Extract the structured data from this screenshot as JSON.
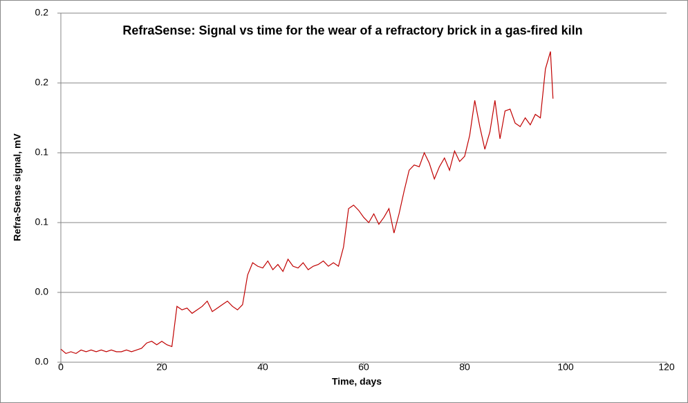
{
  "chart_data": {
    "type": "line",
    "title": "RefraSense: Signal vs time for the wear of a refractory brick in a gas-fired kiln",
    "x_label": "Time, days",
    "y_label": "Refra-Sense signal, mV",
    "xlim": [
      0,
      120
    ],
    "xticks": [
      0,
      20,
      40,
      60,
      80,
      100,
      120
    ],
    "ylim": [
      0,
      0.2
    ],
    "yticks": [
      {
        "value": 0,
        "label": "0.0"
      },
      {
        "value": 0.04,
        "label": "0.0"
      },
      {
        "value": 0.08,
        "label": "0.1"
      },
      {
        "value": 0.12,
        "label": "0.1"
      },
      {
        "value": 0.16,
        "label": "0.2"
      },
      0.2
    ],
    "grid": true,
    "x": [
      0,
      1,
      2,
      3,
      4,
      5,
      6,
      7,
      8,
      9,
      10,
      11,
      12,
      13,
      14,
      15,
      16,
      17,
      18,
      19,
      20,
      21,
      22,
      23,
      24,
      25,
      26,
      27,
      28,
      29,
      30,
      31,
      32,
      33,
      34,
      35,
      36,
      37,
      38,
      39,
      40,
      41,
      42,
      43,
      44,
      45,
      46,
      47,
      48,
      49,
      50,
      51,
      52,
      53,
      54,
      55,
      56,
      57,
      58,
      59,
      60,
      61,
      62,
      63,
      64,
      65,
      66,
      67,
      68,
      69,
      70,
      71,
      72,
      73,
      74,
      75,
      76,
      77,
      78,
      79,
      80,
      81,
      82,
      83,
      84,
      85,
      86,
      87,
      88,
      89,
      90,
      91,
      92,
      93,
      94,
      95,
      96,
      97,
      97.5
    ],
    "series": [
      {
        "name": "Refra-Sense signal",
        "color": "#c00000",
        "values": [
          0.0075,
          0.005,
          0.006,
          0.005,
          0.007,
          0.006,
          0.007,
          0.006,
          0.007,
          0.006,
          0.007,
          0.006,
          0.006,
          0.007,
          0.006,
          0.007,
          0.008,
          0.011,
          0.012,
          0.01,
          0.012,
          0.01,
          0.009,
          0.032,
          0.03,
          0.031,
          0.028,
          0.03,
          0.032,
          0.035,
          0.029,
          0.031,
          0.033,
          0.035,
          0.032,
          0.03,
          0.033,
          0.05,
          0.057,
          0.055,
          0.054,
          0.058,
          0.053,
          0.056,
          0.052,
          0.059,
          0.055,
          0.054,
          0.057,
          0.053,
          0.055,
          0.056,
          0.058,
          0.055,
          0.057,
          0.055,
          0.066,
          0.088,
          0.09,
          0.087,
          0.083,
          0.08,
          0.085,
          0.079,
          0.083,
          0.088,
          0.074,
          0.085,
          0.098,
          0.11,
          0.113,
          0.112,
          0.12,
          0.114,
          0.105,
          0.112,
          0.117,
          0.11,
          0.121,
          0.115,
          0.118,
          0.13,
          0.15,
          0.135,
          0.122,
          0.132,
          0.15,
          0.128,
          0.144,
          0.145,
          0.137,
          0.135,
          0.14,
          0.136,
          0.142,
          0.14,
          0.168,
          0.178,
          0.151
        ]
      }
    ]
  }
}
